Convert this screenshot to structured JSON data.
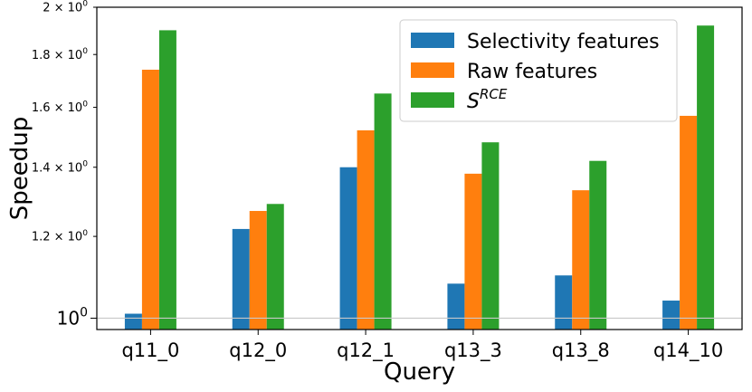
{
  "chart_data": {
    "type": "bar",
    "title": "",
    "xlabel": "Query",
    "ylabel": "Speedup",
    "yscale": "log",
    "ylim": [
      0.975,
      2.0
    ],
    "grid": false,
    "reference_line": 1.0,
    "legend_position": "top-right",
    "categories": [
      "q11_0",
      "q12_0",
      "q12_1",
      "q13_3",
      "q13_8",
      "q14_10"
    ],
    "series": [
      {
        "name": "Selectivity features",
        "color": "#1f77b4",
        "values": [
          1.01,
          1.22,
          1.4,
          1.08,
          1.1,
          1.04
        ]
      },
      {
        "name": "Raw features",
        "color": "#ff7f0e",
        "values": [
          1.74,
          1.27,
          1.52,
          1.38,
          1.33,
          1.57
        ]
      },
      {
        "name": "S^RCE",
        "color": "#2ca02c",
        "values": [
          1.9,
          1.29,
          1.65,
          1.48,
          1.42,
          1.92
        ]
      }
    ],
    "legend": [
      {
        "label": "Selectivity features",
        "sup": ""
      },
      {
        "label": "Raw features",
        "sup": ""
      },
      {
        "label": "S",
        "sup": "RCE"
      }
    ],
    "y_ticks": [
      {
        "value": 1.0,
        "label": "10",
        "sup": "0",
        "major": true
      },
      {
        "value": 1.2,
        "label": "1.2 × 10",
        "sup": "0",
        "major": false
      },
      {
        "value": 1.4,
        "label": "1.4 × 10",
        "sup": "0",
        "major": false
      },
      {
        "value": 1.6,
        "label": "1.6 × 10",
        "sup": "0",
        "major": false
      },
      {
        "value": 1.8,
        "label": "1.8 × 10",
        "sup": "0",
        "major": false
      },
      {
        "value": 2.0,
        "label": "2 × 10",
        "sup": "0",
        "major": false
      }
    ]
  }
}
